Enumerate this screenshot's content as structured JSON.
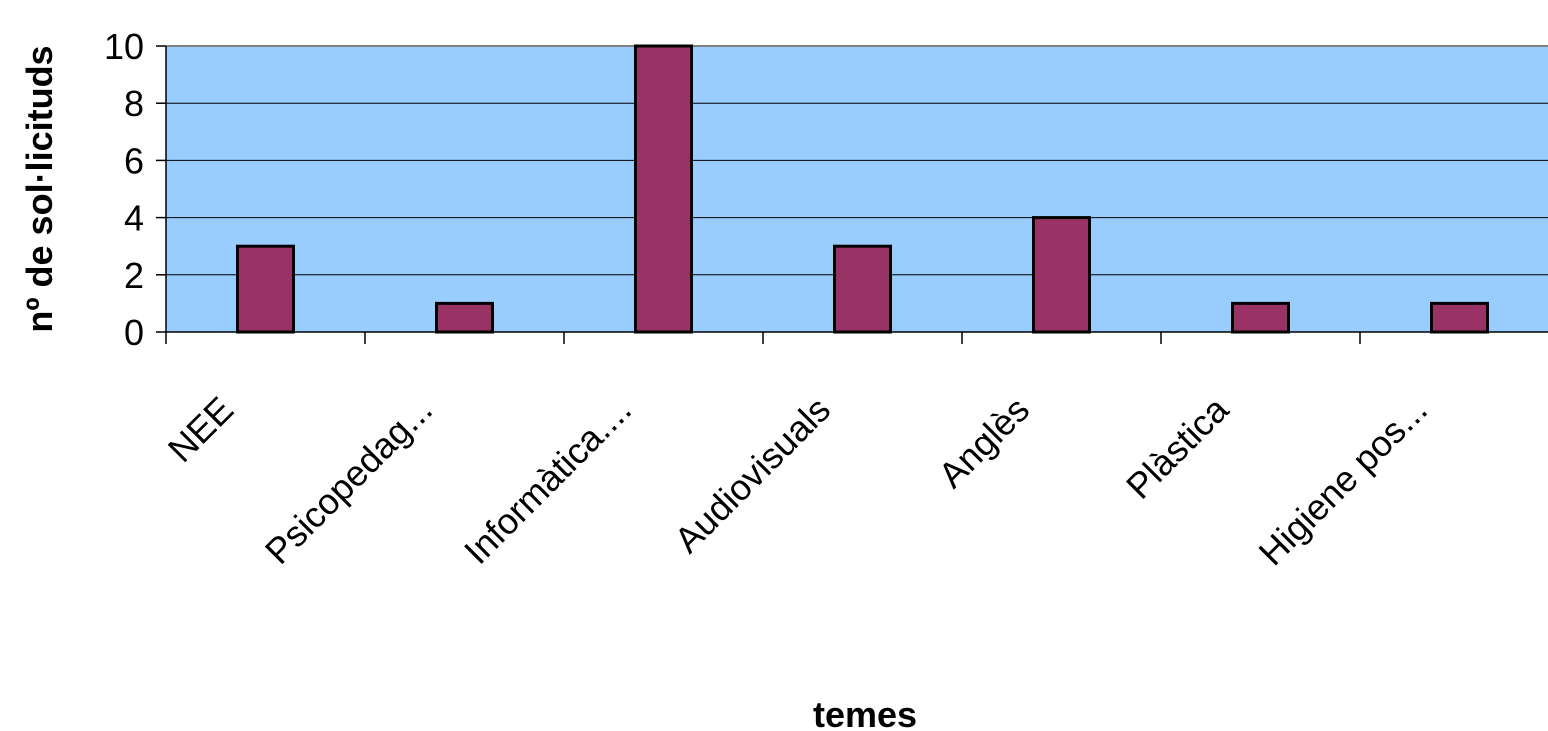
{
  "chart_data": {
    "type": "bar",
    "title": "",
    "xlabel": "temes",
    "ylabel": "nº de sol·licituds",
    "categories": [
      "NEE",
      "Psicopedag...",
      "Informàtica....",
      "Audiovisuals",
      "Anglès",
      "Plàstica",
      "Higiene pos..."
    ],
    "series": [
      {
        "values": [
          3,
          1,
          10,
          3,
          4,
          1,
          1
        ]
      }
    ],
    "ylim": [
      0,
      10
    ],
    "yticks": [
      "0",
      "2",
      "4",
      "6",
      "8",
      "10"
    ],
    "grid": true,
    "legend": "none",
    "colors": {
      "plot_background": "#99ccff",
      "bar_fill": "#993366",
      "bar_stroke": "#000000",
      "gridline": "#000000",
      "frame": "#808080"
    }
  }
}
